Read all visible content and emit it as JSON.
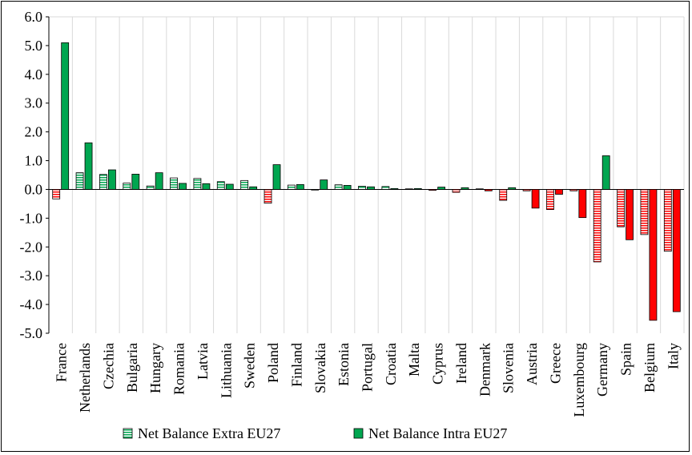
{
  "chart_data": {
    "type": "bar",
    "title": "",
    "xlabel": "",
    "ylabel": "",
    "ylim": [
      -5.0,
      6.0
    ],
    "yticks": [
      "6.0",
      "5.0",
      "4.0",
      "3.0",
      "2.0",
      "1.0",
      "0.0",
      "-1.0",
      "-2.0",
      "-3.0",
      "-4.0",
      "-5.0"
    ],
    "grid": "vertical",
    "legend_position": "bottom",
    "categories": [
      "France",
      "Netherlands",
      "Czechia",
      "Bulgaria",
      "Hungary",
      "Romania",
      "Latvia",
      "Lithuania",
      "Sweden",
      "Poland",
      "Finland",
      "Slovakia",
      "Estonia",
      "Portugal",
      "Croatia",
      "Malta",
      "Cyprus",
      "Ireland",
      "Denmark",
      "Slovenia",
      "Austria",
      "Greece",
      "Luxembourg",
      "Germany",
      "Spain",
      "Belgium",
      "Italy"
    ],
    "series": [
      {
        "name": "Net Balance Extra EU27",
        "pattern": "striped",
        "values": [
          -0.33,
          0.58,
          0.52,
          0.22,
          0.12,
          0.4,
          0.38,
          0.27,
          0.31,
          -0.48,
          0.15,
          -0.02,
          0.16,
          0.11,
          0.1,
          0.02,
          -0.03,
          -0.1,
          0.02,
          -0.38,
          -0.05,
          -0.7,
          -0.05,
          -2.52,
          -1.3,
          -1.57,
          -2.15
        ]
      },
      {
        "name": "Net Balance Intra EU27",
        "pattern": "solid",
        "values": [
          5.1,
          1.62,
          0.68,
          0.53,
          0.58,
          0.21,
          0.2,
          0.18,
          0.09,
          0.86,
          0.17,
          0.33,
          0.14,
          0.09,
          0.03,
          0.03,
          0.08,
          0.06,
          -0.05,
          0.06,
          -0.65,
          -0.17,
          -0.98,
          1.17,
          -1.75,
          -4.55,
          -4.25
        ]
      }
    ],
    "colors": {
      "positive_fill": "#00A650",
      "positive_light": "#9ED9B3",
      "negative_fill": "#FF0000",
      "negative_light": "#F7A0A0",
      "grid": "#D9D9D9"
    }
  }
}
